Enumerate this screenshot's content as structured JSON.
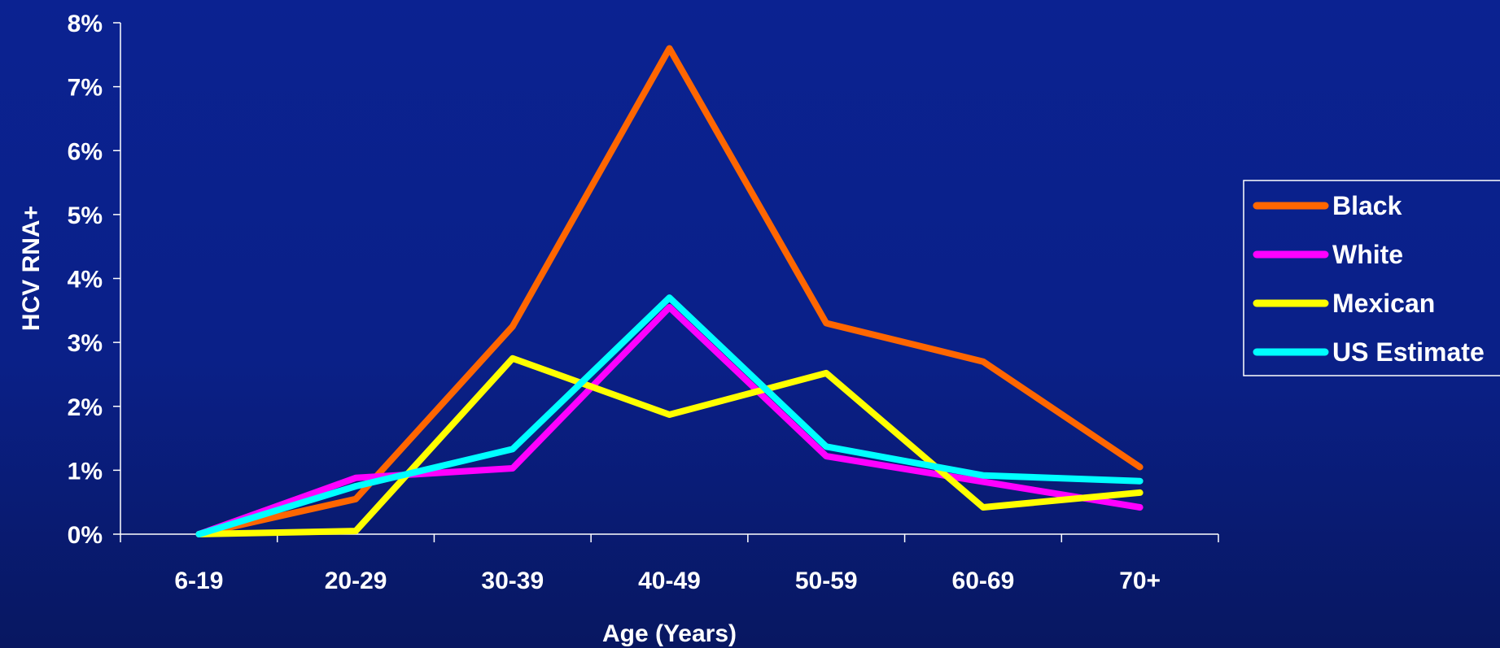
{
  "chart_data": {
    "type": "line",
    "xlabel": "Age (Years)",
    "ylabel": "HCV RNA+",
    "categories": [
      "6-19",
      "20-29",
      "30-39",
      "40-49",
      "50-59",
      "60-69",
      "70+"
    ],
    "ylim": [
      0,
      8
    ],
    "yticks": [
      0,
      1,
      2,
      3,
      4,
      5,
      6,
      7,
      8
    ],
    "ytick_labels": [
      "0%",
      "1%",
      "2%",
      "3%",
      "4%",
      "5%",
      "6%",
      "7%",
      "8%"
    ],
    "grid": false,
    "legend_position": "right",
    "series": [
      {
        "name": "Black",
        "color": "#ff6600",
        "values": [
          0.0,
          0.55,
          3.25,
          7.6,
          3.3,
          2.7,
          1.05
        ]
      },
      {
        "name": "White",
        "color": "#ff00ff",
        "values": [
          0.0,
          0.88,
          1.03,
          3.55,
          1.22,
          0.82,
          0.42
        ]
      },
      {
        "name": "Mexican",
        "color": "#ffff00",
        "values": [
          0.0,
          0.05,
          2.75,
          1.87,
          2.52,
          0.42,
          0.65
        ]
      },
      {
        "name": "US Estimate",
        "color": "#00ffff",
        "values": [
          0.0,
          0.75,
          1.33,
          3.7,
          1.37,
          0.92,
          0.83
        ]
      }
    ]
  }
}
